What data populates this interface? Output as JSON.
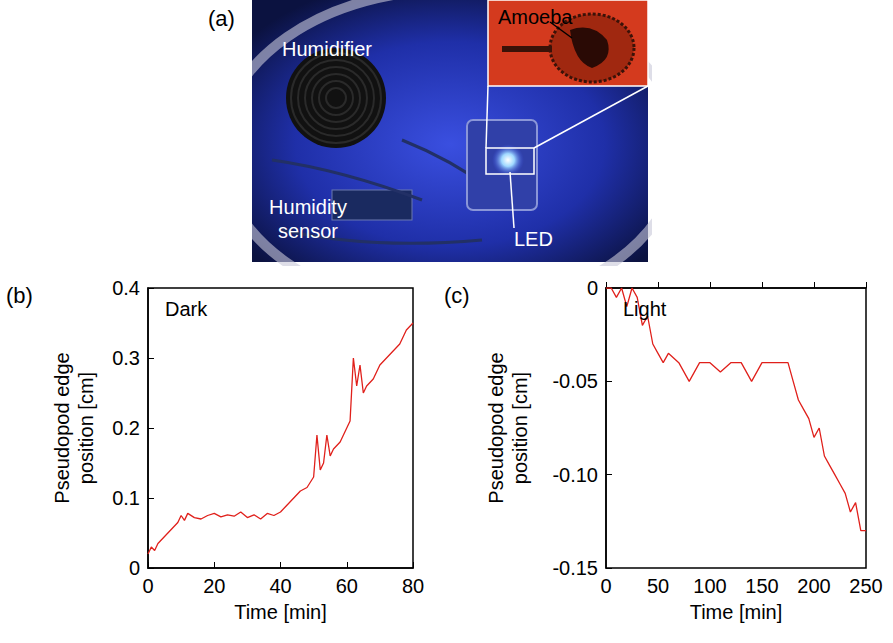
{
  "photo": {
    "panel": "(a)",
    "labels": [
      "Humidifier",
      "Amoeba",
      "Humidity sensor",
      "LED"
    ]
  },
  "chart_data": [
    {
      "panel": "(b)",
      "type": "line",
      "title": "Dark",
      "x_label": "Time [min]",
      "y_label": "Pseudopod edge position [cm]",
      "x": [
        0,
        1,
        2,
        3,
        4,
        5,
        6,
        7,
        8,
        9,
        10,
        11,
        12,
        14,
        16,
        18,
        20,
        22,
        24,
        26,
        28,
        30,
        32,
        34,
        36,
        38,
        40,
        42,
        44,
        46,
        48,
        50,
        51,
        52,
        53,
        54,
        55,
        56,
        58,
        60,
        61,
        62,
        63,
        64,
        65,
        66,
        68,
        70,
        72,
        74,
        76,
        78,
        80
      ],
      "series": [
        {
          "color": "#e0201b",
          "line_style": "solid",
          "values": [
            0.02,
            0.03,
            0.025,
            0.035,
            0.04,
            0.045,
            0.05,
            0.055,
            0.06,
            0.065,
            0.075,
            0.068,
            0.078,
            0.072,
            0.07,
            0.075,
            0.078,
            0.073,
            0.076,
            0.074,
            0.08,
            0.072,
            0.076,
            0.07,
            0.078,
            0.075,
            0.08,
            0.09,
            0.1,
            0.11,
            0.115,
            0.13,
            0.19,
            0.14,
            0.15,
            0.19,
            0.16,
            0.17,
            0.18,
            0.2,
            0.21,
            0.3,
            0.26,
            0.29,
            0.25,
            0.26,
            0.27,
            0.29,
            0.3,
            0.31,
            0.32,
            0.34,
            0.35
          ]
        }
      ],
      "xlim": [
        0,
        80
      ],
      "xticks": [
        0,
        20,
        40,
        60,
        80
      ],
      "ylim": [
        0,
        0.4
      ],
      "yticks": [
        0,
        0.1,
        0.2,
        0.3,
        0.4
      ],
      "grid": false
    },
    {
      "panel": "(c)",
      "type": "line",
      "title": "Light",
      "x_label": "Time [min]",
      "y_label": "Pseudopod edge position [cm]",
      "x": [
        0,
        5,
        10,
        15,
        20,
        25,
        30,
        35,
        40,
        45,
        50,
        55,
        60,
        70,
        80,
        90,
        100,
        110,
        120,
        130,
        140,
        150,
        160,
        170,
        175,
        180,
        185,
        190,
        195,
        200,
        205,
        210,
        215,
        220,
        225,
        230,
        235,
        240,
        245,
        250
      ],
      "series": [
        {
          "color": "#e0201b",
          "line_style": "solid",
          "values": [
            0,
            0,
            -0.005,
            0,
            -0.01,
            0,
            -0.005,
            -0.02,
            -0.015,
            -0.03,
            -0.035,
            -0.04,
            -0.035,
            -0.04,
            -0.05,
            -0.04,
            -0.04,
            -0.045,
            -0.04,
            -0.04,
            -0.05,
            -0.04,
            -0.04,
            -0.04,
            -0.04,
            -0.05,
            -0.06,
            -0.065,
            -0.07,
            -0.08,
            -0.075,
            -0.09,
            -0.095,
            -0.1,
            -0.105,
            -0.11,
            -0.12,
            -0.115,
            -0.13,
            -0.13
          ]
        }
      ],
      "xlim": [
        0,
        250
      ],
      "xticks": [
        0,
        50,
        100,
        150,
        200,
        250
      ],
      "ylim": [
        -0.15,
        0
      ],
      "yticks": [
        0,
        -0.05,
        {
          "value": -0.1,
          "label": "-0.10"
        },
        -0.15
      ],
      "grid": false
    }
  ]
}
